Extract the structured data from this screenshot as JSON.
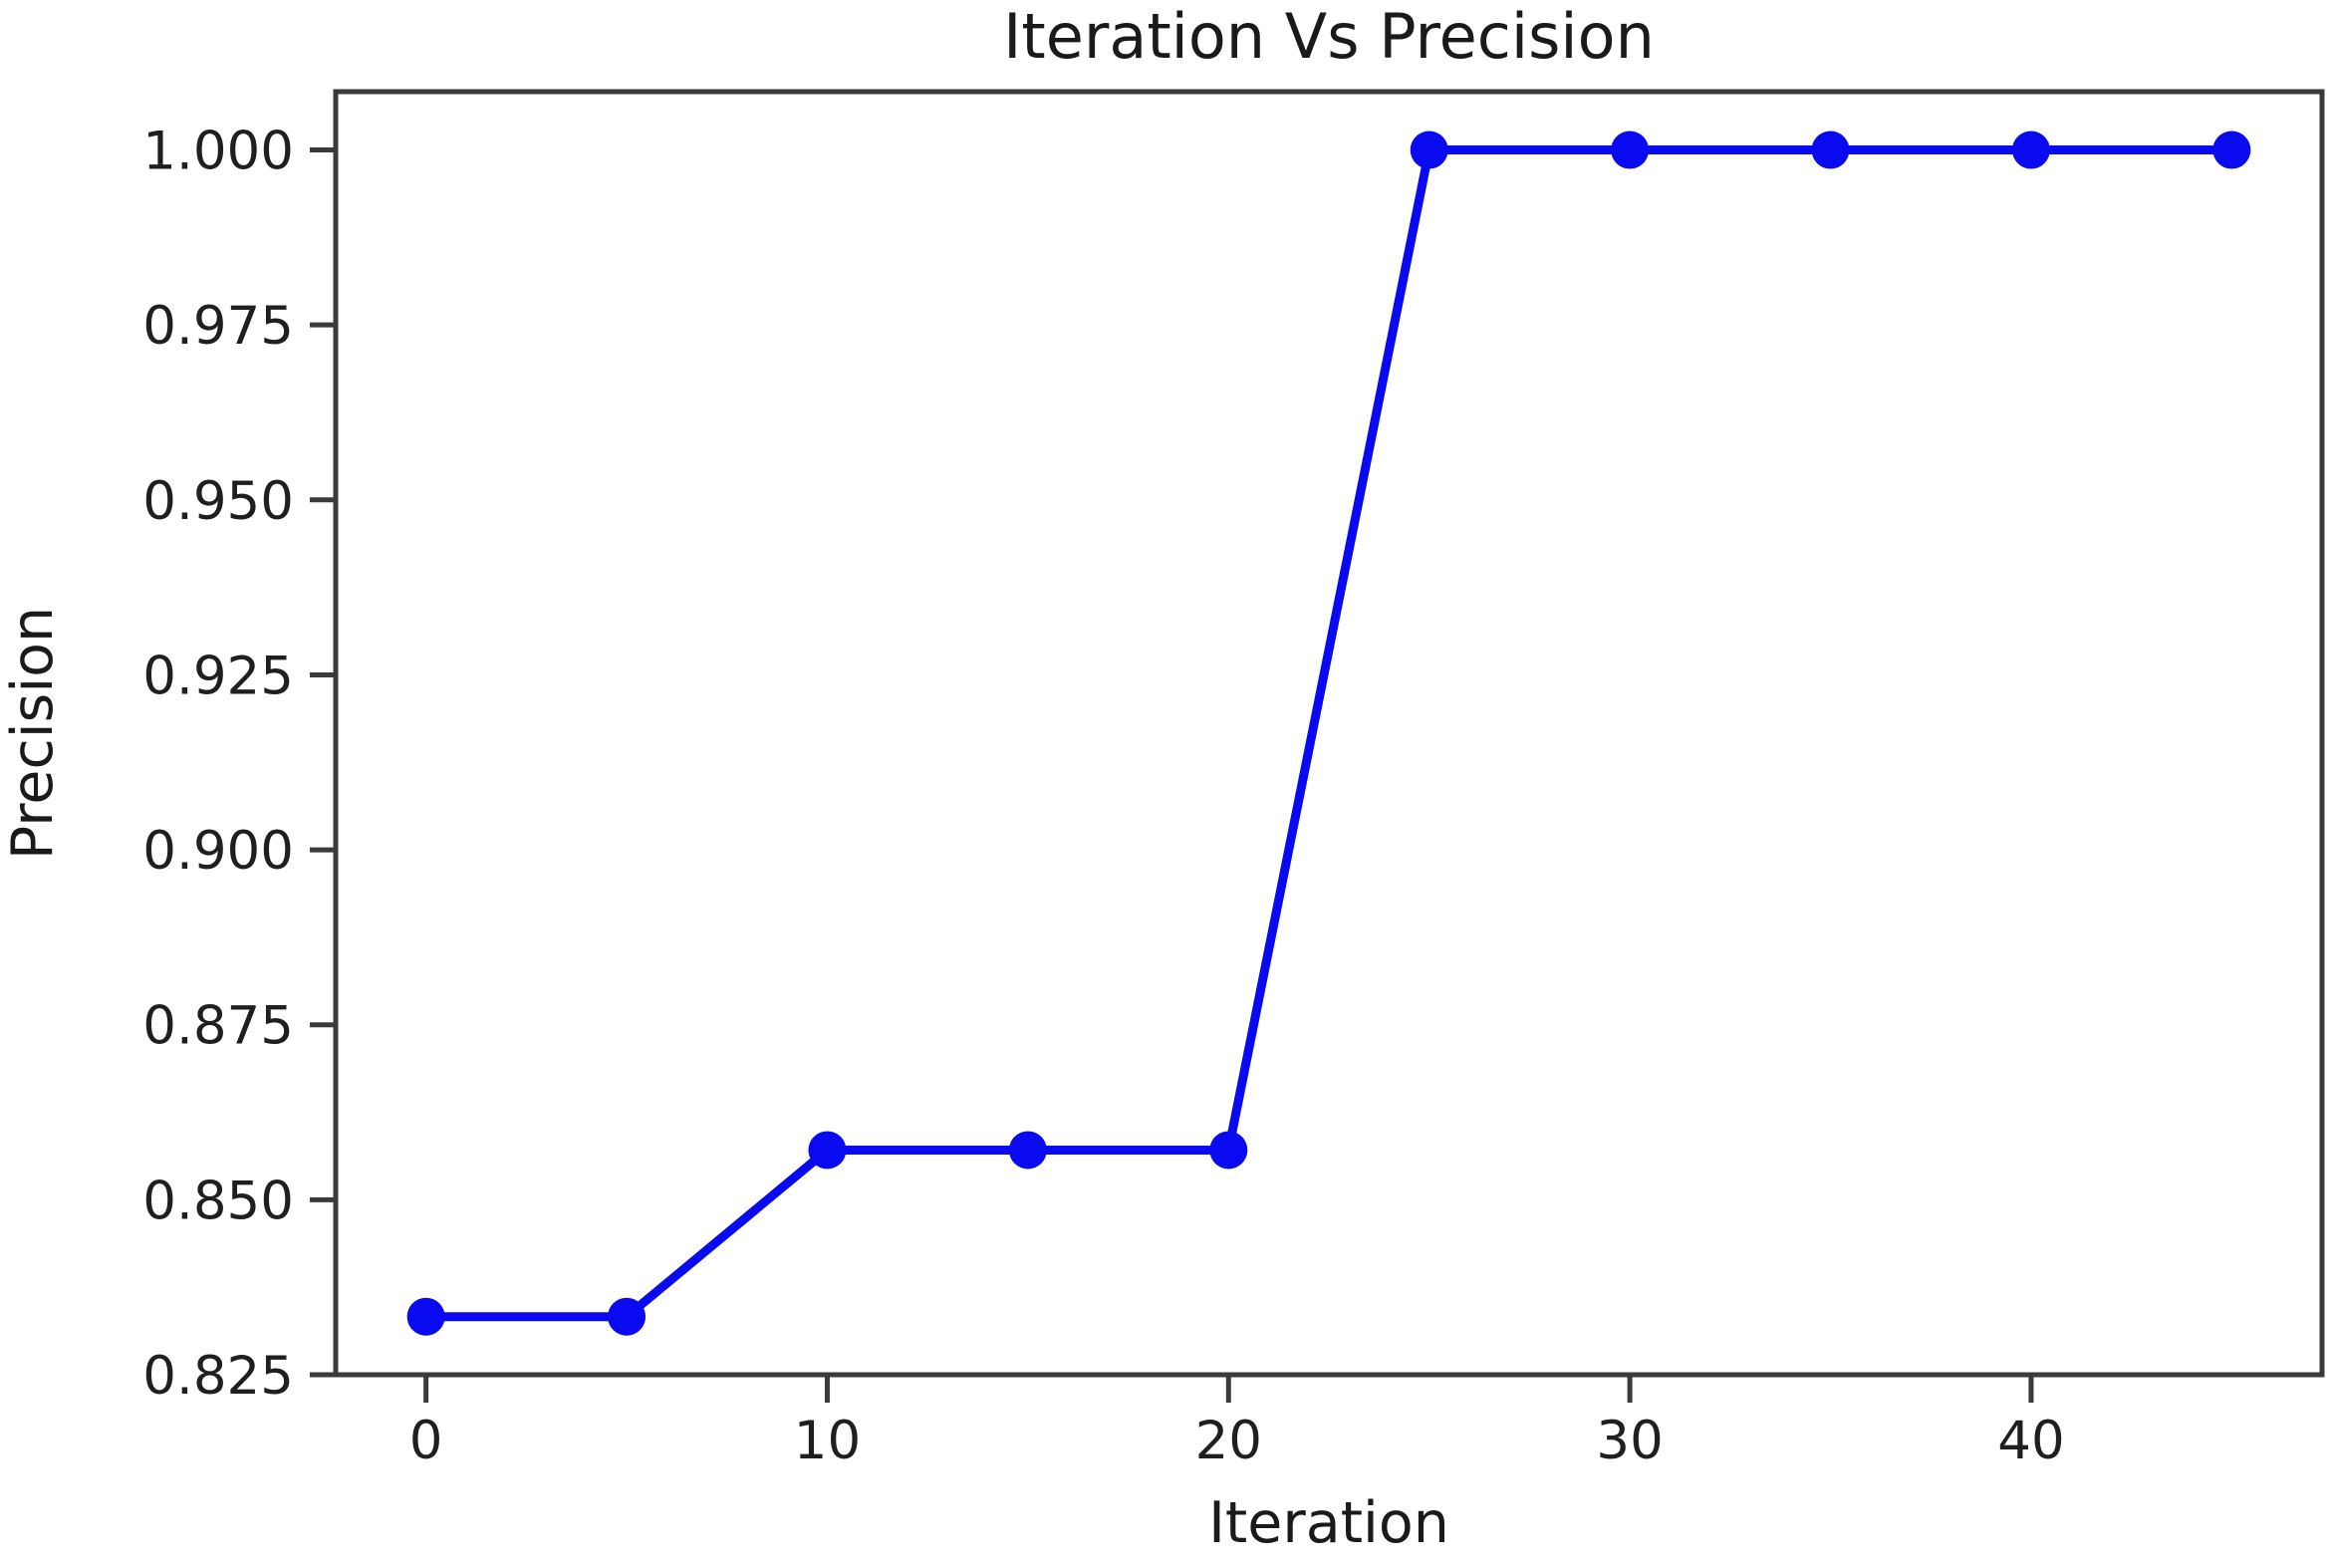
{
  "chart_data": {
    "type": "line",
    "title": "Iteration Vs Precision",
    "xlabel": "Iteration",
    "ylabel": "Precision",
    "x": [
      0,
      5,
      10,
      15,
      20,
      25,
      30,
      35,
      40,
      45
    ],
    "y": [
      0.8333,
      0.8333,
      0.8571,
      0.8571,
      0.8571,
      1.0,
      1.0,
      1.0,
      1.0,
      1.0
    ],
    "xlim": [
      -2.25,
      47.25
    ],
    "ylim": [
      0.825,
      1.00833
    ],
    "xticks": [
      {
        "value": 0,
        "label": "0"
      },
      {
        "value": 10,
        "label": "10"
      },
      {
        "value": 20,
        "label": "20"
      },
      {
        "value": 30,
        "label": "30"
      },
      {
        "value": 40,
        "label": "40"
      }
    ],
    "yticks": [
      {
        "value": 0.825,
        "label": "0.825"
      },
      {
        "value": 0.85,
        "label": "0.850"
      },
      {
        "value": 0.875,
        "label": "0.875"
      },
      {
        "value": 0.9,
        "label": "0.900"
      },
      {
        "value": 0.925,
        "label": "0.925"
      },
      {
        "value": 0.95,
        "label": "0.950"
      },
      {
        "value": 0.975,
        "label": "0.975"
      },
      {
        "value": 1.0,
        "label": "1.000"
      }
    ],
    "grid": false,
    "legend": false,
    "marker": "circle",
    "line_color": "#0a0af0",
    "axis_color": "#3a3a3a",
    "text_color": "#1a1a1a",
    "background_color": "#ffffff"
  }
}
